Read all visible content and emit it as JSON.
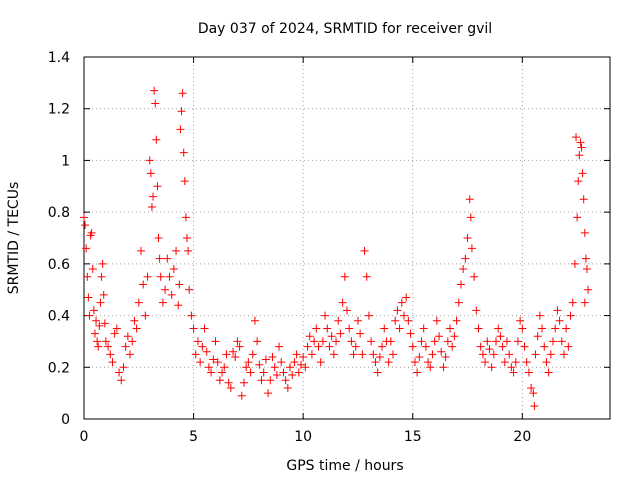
{
  "chart_data": {
    "type": "scatter",
    "title": "Day 037 of 2024, SRMTID for receiver gvil",
    "xlabel": "GPS time / hours",
    "ylabel": "SRMTID / TECUs",
    "xlim": [
      0,
      24
    ],
    "ylim": [
      0,
      1.4
    ],
    "xticks": [
      0,
      5,
      10,
      15,
      20
    ],
    "xtick_labels": [
      "0",
      "5",
      "10",
      "15",
      "20"
    ],
    "yticks": [
      0,
      0.2,
      0.4,
      0.6,
      0.8,
      1.0,
      1.2,
      1.4
    ],
    "ytick_labels": [
      "0",
      "0.2",
      "0.4",
      "0.6",
      "0.8",
      "1",
      "1.2",
      "1.4"
    ],
    "grid": true,
    "marker": "+",
    "color": "#ff0000",
    "series": [
      {
        "name": "SRMTID",
        "points": [
          [
            0.0,
            0.78
          ],
          [
            0.05,
            0.75
          ],
          [
            0.1,
            0.66
          ],
          [
            0.15,
            0.55
          ],
          [
            0.2,
            0.47
          ],
          [
            0.25,
            0.4
          ],
          [
            0.3,
            0.71
          ],
          [
            0.35,
            0.72
          ],
          [
            0.4,
            0.58
          ],
          [
            0.45,
            0.42
          ],
          [
            0.5,
            0.33
          ],
          [
            0.55,
            0.38
          ],
          [
            0.6,
            0.3
          ],
          [
            0.65,
            0.28
          ],
          [
            0.7,
            0.36
          ],
          [
            0.75,
            0.45
          ],
          [
            0.8,
            0.55
          ],
          [
            0.85,
            0.6
          ],
          [
            0.9,
            0.48
          ],
          [
            0.95,
            0.37
          ],
          [
            1.0,
            0.3
          ],
          [
            1.1,
            0.28
          ],
          [
            1.2,
            0.25
          ],
          [
            1.3,
            0.22
          ],
          [
            1.4,
            0.33
          ],
          [
            1.5,
            0.35
          ],
          [
            1.6,
            0.18
          ],
          [
            1.7,
            0.15
          ],
          [
            1.8,
            0.2
          ],
          [
            1.9,
            0.28
          ],
          [
            2.0,
            0.32
          ],
          [
            2.1,
            0.25
          ],
          [
            2.2,
            0.3
          ],
          [
            2.3,
            0.38
          ],
          [
            2.4,
            0.35
          ],
          [
            2.5,
            0.45
          ],
          [
            2.6,
            0.65
          ],
          [
            2.7,
            0.52
          ],
          [
            2.8,
            0.4
          ],
          [
            2.9,
            0.55
          ],
          [
            3.0,
            1.0
          ],
          [
            3.05,
            0.95
          ],
          [
            3.1,
            0.82
          ],
          [
            3.15,
            0.86
          ],
          [
            3.2,
            1.27
          ],
          [
            3.25,
            1.22
          ],
          [
            3.3,
            1.08
          ],
          [
            3.35,
            0.9
          ],
          [
            3.4,
            0.7
          ],
          [
            3.45,
            0.62
          ],
          [
            3.5,
            0.55
          ],
          [
            3.6,
            0.45
          ],
          [
            3.7,
            0.5
          ],
          [
            3.8,
            0.62
          ],
          [
            3.9,
            0.55
          ],
          [
            4.0,
            0.48
          ],
          [
            4.1,
            0.58
          ],
          [
            4.2,
            0.65
          ],
          [
            4.3,
            0.44
          ],
          [
            4.35,
            0.52
          ],
          [
            4.4,
            1.12
          ],
          [
            4.45,
            1.19
          ],
          [
            4.5,
            1.26
          ],
          [
            4.55,
            1.03
          ],
          [
            4.6,
            0.92
          ],
          [
            4.65,
            0.78
          ],
          [
            4.7,
            0.7
          ],
          [
            4.75,
            0.65
          ],
          [
            4.8,
            0.5
          ],
          [
            4.9,
            0.4
          ],
          [
            5.0,
            0.35
          ],
          [
            5.1,
            0.25
          ],
          [
            5.2,
            0.3
          ],
          [
            5.3,
            0.22
          ],
          [
            5.4,
            0.28
          ],
          [
            5.5,
            0.35
          ],
          [
            5.6,
            0.26
          ],
          [
            5.7,
            0.2
          ],
          [
            5.8,
            0.18
          ],
          [
            5.9,
            0.23
          ],
          [
            6.0,
            0.3
          ],
          [
            6.1,
            0.22
          ],
          [
            6.2,
            0.15
          ],
          [
            6.3,
            0.18
          ],
          [
            6.4,
            0.2
          ],
          [
            6.5,
            0.25
          ],
          [
            6.6,
            0.14
          ],
          [
            6.7,
            0.12
          ],
          [
            6.8,
            0.26
          ],
          [
            6.9,
            0.24
          ],
          [
            7.0,
            0.3
          ],
          [
            7.1,
            0.28
          ],
          [
            7.2,
            0.09
          ],
          [
            7.3,
            0.14
          ],
          [
            7.4,
            0.2
          ],
          [
            7.5,
            0.22
          ],
          [
            7.6,
            0.18
          ],
          [
            7.7,
            0.25
          ],
          [
            7.8,
            0.38
          ],
          [
            7.9,
            0.3
          ],
          [
            8.0,
            0.21
          ],
          [
            8.1,
            0.15
          ],
          [
            8.2,
            0.18
          ],
          [
            8.3,
            0.23
          ],
          [
            8.4,
            0.1
          ],
          [
            8.5,
            0.15
          ],
          [
            8.6,
            0.24
          ],
          [
            8.7,
            0.2
          ],
          [
            8.8,
            0.17
          ],
          [
            8.9,
            0.28
          ],
          [
            9.0,
            0.22
          ],
          [
            9.1,
            0.18
          ],
          [
            9.2,
            0.15
          ],
          [
            9.3,
            0.12
          ],
          [
            9.4,
            0.2
          ],
          [
            9.5,
            0.17
          ],
          [
            9.6,
            0.22
          ],
          [
            9.7,
            0.25
          ],
          [
            9.8,
            0.18
          ],
          [
            9.9,
            0.21
          ],
          [
            10.0,
            0.24
          ],
          [
            10.1,
            0.2
          ],
          [
            10.2,
            0.28
          ],
          [
            10.3,
            0.32
          ],
          [
            10.4,
            0.25
          ],
          [
            10.5,
            0.3
          ],
          [
            10.6,
            0.35
          ],
          [
            10.7,
            0.28
          ],
          [
            10.8,
            0.22
          ],
          [
            10.9,
            0.3
          ],
          [
            11.0,
            0.4
          ],
          [
            11.1,
            0.35
          ],
          [
            11.2,
            0.28
          ],
          [
            11.3,
            0.32
          ],
          [
            11.4,
            0.25
          ],
          [
            11.5,
            0.3
          ],
          [
            11.6,
            0.38
          ],
          [
            11.7,
            0.33
          ],
          [
            11.8,
            0.45
          ],
          [
            11.9,
            0.55
          ],
          [
            12.0,
            0.42
          ],
          [
            12.1,
            0.35
          ],
          [
            12.2,
            0.3
          ],
          [
            12.3,
            0.25
          ],
          [
            12.4,
            0.28
          ],
          [
            12.5,
            0.38
          ],
          [
            12.6,
            0.33
          ],
          [
            12.7,
            0.25
          ],
          [
            12.8,
            0.65
          ],
          [
            12.9,
            0.55
          ],
          [
            13.0,
            0.4
          ],
          [
            13.1,
            0.3
          ],
          [
            13.2,
            0.25
          ],
          [
            13.3,
            0.22
          ],
          [
            13.4,
            0.18
          ],
          [
            13.5,
            0.24
          ],
          [
            13.6,
            0.28
          ],
          [
            13.7,
            0.35
          ],
          [
            13.8,
            0.3
          ],
          [
            13.9,
            0.22
          ],
          [
            14.0,
            0.3
          ],
          [
            14.1,
            0.25
          ],
          [
            14.2,
            0.38
          ],
          [
            14.3,
            0.42
          ],
          [
            14.4,
            0.35
          ],
          [
            14.5,
            0.45
          ],
          [
            14.6,
            0.4
          ],
          [
            14.7,
            0.47
          ],
          [
            14.8,
            0.38
          ],
          [
            14.9,
            0.33
          ],
          [
            15.0,
            0.28
          ],
          [
            15.1,
            0.22
          ],
          [
            15.2,
            0.18
          ],
          [
            15.3,
            0.24
          ],
          [
            15.4,
            0.3
          ],
          [
            15.5,
            0.35
          ],
          [
            15.6,
            0.28
          ],
          [
            15.7,
            0.22
          ],
          [
            15.8,
            0.2
          ],
          [
            15.9,
            0.25
          ],
          [
            16.0,
            0.3
          ],
          [
            16.1,
            0.38
          ],
          [
            16.2,
            0.32
          ],
          [
            16.3,
            0.26
          ],
          [
            16.4,
            0.2
          ],
          [
            16.5,
            0.24
          ],
          [
            16.6,
            0.3
          ],
          [
            16.7,
            0.35
          ],
          [
            16.8,
            0.28
          ],
          [
            16.9,
            0.32
          ],
          [
            17.0,
            0.38
          ],
          [
            17.1,
            0.45
          ],
          [
            17.2,
            0.52
          ],
          [
            17.3,
            0.58
          ],
          [
            17.4,
            0.62
          ],
          [
            17.5,
            0.7
          ],
          [
            17.6,
            0.85
          ],
          [
            17.65,
            0.78
          ],
          [
            17.7,
            0.66
          ],
          [
            17.8,
            0.55
          ],
          [
            17.9,
            0.42
          ],
          [
            18.0,
            0.35
          ],
          [
            18.1,
            0.28
          ],
          [
            18.2,
            0.25
          ],
          [
            18.3,
            0.22
          ],
          [
            18.4,
            0.3
          ],
          [
            18.5,
            0.27
          ],
          [
            18.6,
            0.2
          ],
          [
            18.7,
            0.25
          ],
          [
            18.8,
            0.3
          ],
          [
            18.9,
            0.35
          ],
          [
            19.0,
            0.32
          ],
          [
            19.1,
            0.28
          ],
          [
            19.2,
            0.22
          ],
          [
            19.3,
            0.3
          ],
          [
            19.4,
            0.25
          ],
          [
            19.5,
            0.2
          ],
          [
            19.6,
            0.18
          ],
          [
            19.7,
            0.22
          ],
          [
            19.8,
            0.3
          ],
          [
            19.9,
            0.38
          ],
          [
            20.0,
            0.35
          ],
          [
            20.1,
            0.28
          ],
          [
            20.2,
            0.22
          ],
          [
            20.3,
            0.18
          ],
          [
            20.4,
            0.12
          ],
          [
            20.5,
            0.1
          ],
          [
            20.55,
            0.05
          ],
          [
            20.6,
            0.25
          ],
          [
            20.7,
            0.32
          ],
          [
            20.8,
            0.4
          ],
          [
            20.9,
            0.35
          ],
          [
            21.0,
            0.28
          ],
          [
            21.1,
            0.22
          ],
          [
            21.2,
            0.18
          ],
          [
            21.3,
            0.25
          ],
          [
            21.4,
            0.3
          ],
          [
            21.5,
            0.35
          ],
          [
            21.6,
            0.42
          ],
          [
            21.7,
            0.38
          ],
          [
            21.8,
            0.3
          ],
          [
            21.9,
            0.25
          ],
          [
            22.0,
            0.35
          ],
          [
            22.1,
            0.28
          ],
          [
            22.2,
            0.4
          ],
          [
            22.3,
            0.45
          ],
          [
            22.4,
            0.6
          ],
          [
            22.5,
            0.78
          ],
          [
            22.55,
            0.92
          ],
          [
            22.6,
            1.02
          ],
          [
            22.65,
            1.07
          ],
          [
            22.7,
            1.05
          ],
          [
            22.75,
            0.95
          ],
          [
            22.8,
            0.85
          ],
          [
            22.85,
            0.72
          ],
          [
            22.9,
            0.62
          ],
          [
            22.95,
            0.58
          ],
          [
            23.0,
            0.5
          ],
          [
            22.45,
            1.09
          ],
          [
            22.85,
            0.45
          ]
        ]
      }
    ]
  }
}
